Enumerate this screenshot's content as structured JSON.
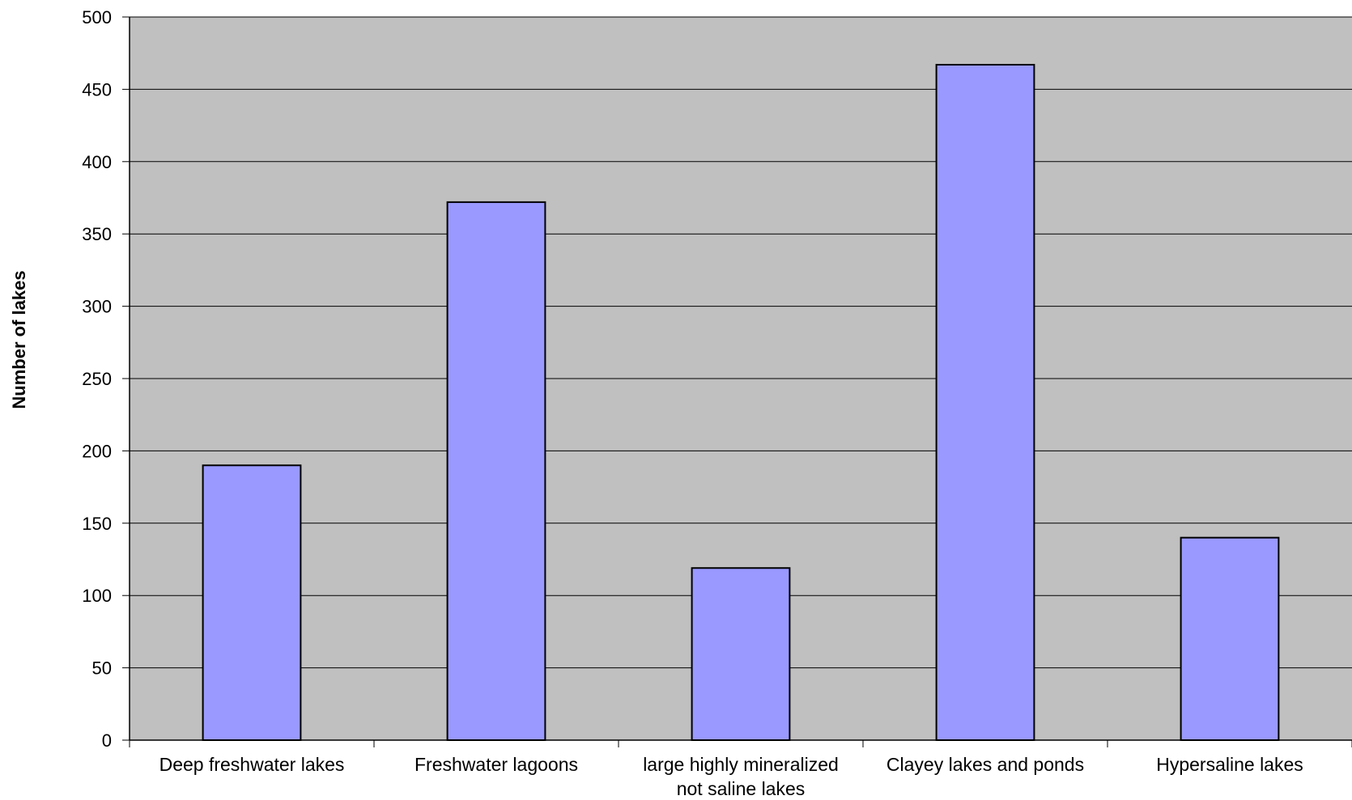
{
  "chart_data": {
    "type": "bar",
    "title": "",
    "xlabel": "",
    "ylabel": "Number of lakes",
    "ylim": [
      0,
      500
    ],
    "yticks": [
      0,
      50,
      100,
      150,
      200,
      250,
      300,
      350,
      400,
      450,
      500
    ],
    "grid": true,
    "categories": [
      [
        "Deep freshwater lakes"
      ],
      [
        "Freshwater lagoons"
      ],
      [
        "large highly mineralized",
        "not saline lakes"
      ],
      [
        "Clayey lakes and ponds"
      ],
      [
        "Hypersaline lakes"
      ]
    ],
    "values": [
      190,
      372,
      119,
      467,
      140
    ],
    "colors": {
      "plot_background": "#c0c0c0",
      "bar_fill": "#9999ff",
      "bar_stroke": "#000000",
      "gridline": "#000000"
    }
  }
}
